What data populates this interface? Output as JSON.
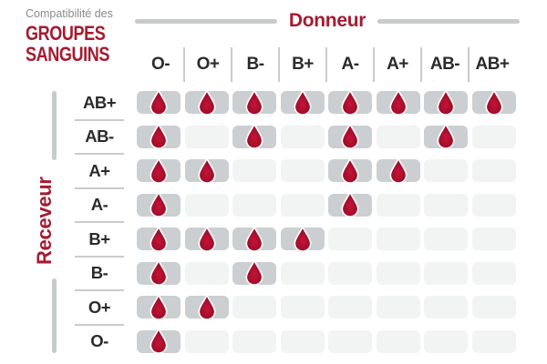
{
  "title": {
    "eyebrow": "Compatibilité des",
    "line1": "GROUPES",
    "line2": "SANGUINS"
  },
  "axes": {
    "donor_label": "Donneur",
    "receiver_label": "Receveur"
  },
  "grid": {
    "columns": [
      "O-",
      "O+",
      "B-",
      "B+",
      "A-",
      "A+",
      "AB-",
      "AB+"
    ],
    "rows": [
      {
        "label": "AB+",
        "receives_from": [
          "O-",
          "O+",
          "B-",
          "B+",
          "A-",
          "A+",
          "AB-",
          "AB+"
        ]
      },
      {
        "label": "AB-",
        "receives_from": [
          "O-",
          "B-",
          "A-",
          "AB-"
        ]
      },
      {
        "label": "A+",
        "receives_from": [
          "O-",
          "O+",
          "A-",
          "A+"
        ]
      },
      {
        "label": "A-",
        "receives_from": [
          "O-",
          "A-"
        ]
      },
      {
        "label": "B+",
        "receives_from": [
          "O-",
          "O+",
          "B-",
          "B+"
        ]
      },
      {
        "label": "B-",
        "receives_from": [
          "O-",
          "B-"
        ]
      },
      {
        "label": "O+",
        "receives_from": [
          "O-",
          "O+"
        ]
      },
      {
        "label": "O-",
        "receives_from": [
          "O-"
        ]
      }
    ]
  },
  "icons": {
    "compatible_marker": "blood-drop-icon"
  },
  "colors": {
    "accent_red": "#a51b30",
    "drop_red_light": "#c3143a",
    "drop_red": "#a80e2b",
    "drop_red_dark": "#8c0a21",
    "cell_active": "#cccfd1",
    "cell_inactive": "#f2f3f3",
    "line_gray": "#c8cbcc",
    "separator_gray": "#c9cbcc",
    "label_dark": "#2b2b2b",
    "eyebrow_gray": "#8c8c8c"
  }
}
